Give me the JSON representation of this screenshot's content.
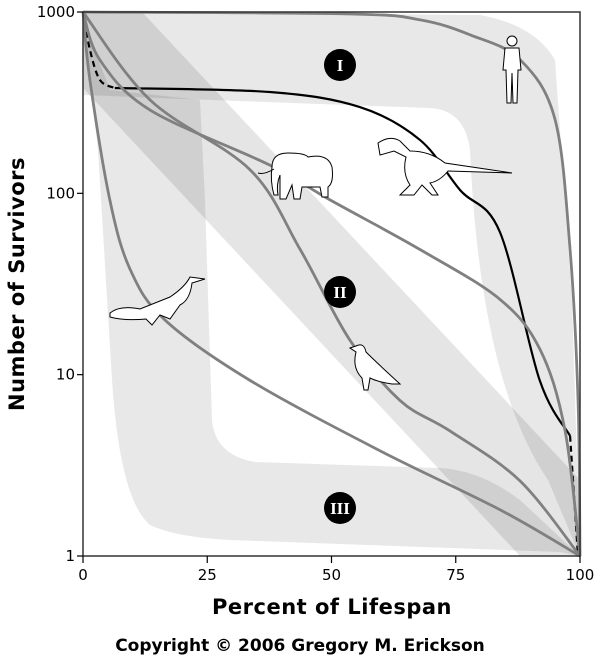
{
  "chart_data": {
    "type": "line",
    "xlabel": "Percent of Lifespan",
    "ylabel": "Number of Survivors",
    "xlim": [
      0,
      100
    ],
    "ylim": [
      1,
      1000
    ],
    "yscale": "log",
    "x_ticks": [
      "0",
      "25",
      "50",
      "75",
      "100"
    ],
    "y_ticks": [
      "1",
      "10",
      "100",
      "1000"
    ],
    "grid": false,
    "legend": "none",
    "region_labels": [
      "I",
      "II",
      "III"
    ],
    "series": [
      {
        "icon": "human-icon",
        "color": "#808080",
        "style": "solid",
        "points": [
          [
            0,
            1000
          ],
          [
            54,
            975
          ],
          [
            68,
            903
          ],
          [
            78,
            746
          ],
          [
            88,
            544
          ],
          [
            95,
            254
          ],
          [
            98,
            49
          ],
          [
            99.6,
            7.3
          ],
          [
            100,
            1
          ]
        ]
      },
      {
        "icon": "tyrannosaurus-icon",
        "color": "#000000",
        "style": "solid",
        "points": [
          [
            6.4,
            381
          ],
          [
            37.6,
            362
          ],
          [
            55.7,
            299
          ],
          [
            67.8,
            197
          ],
          [
            75.9,
            104
          ],
          [
            83.9,
            61
          ],
          [
            91.9,
            9.3
          ],
          [
            98,
            4.6
          ]
        ]
      },
      {
        "icon": "tyrannosaurus-icon",
        "color": "#000000",
        "style": "dashed",
        "points": [
          [
            0,
            1000
          ],
          [
            1.4,
            618
          ],
          [
            3.4,
            422
          ],
          [
            6.4,
            381
          ]
        ]
      },
      {
        "icon": "tyrannosaurus-icon",
        "color": "#000000",
        "style": "dashed",
        "points": [
          [
            98,
            4.6
          ],
          [
            99.6,
            1
          ]
        ]
      },
      {
        "icon": "elephant-icon",
        "color": "#808080",
        "style": "solid",
        "points": [
          [
            0,
            1000
          ],
          [
            3.4,
            544
          ],
          [
            13.5,
            288
          ],
          [
            37.6,
            143
          ],
          [
            49.7,
            92
          ],
          [
            67.8,
            49
          ],
          [
            83.9,
            26
          ],
          [
            92,
            13.7
          ],
          [
            97,
            4.9
          ],
          [
            100,
            1
          ]
        ]
      },
      {
        "icon": "bird-icon",
        "color": "#808080",
        "style": "solid",
        "points": [
          [
            0,
            1000
          ],
          [
            13.5,
            327
          ],
          [
            33.6,
            135
          ],
          [
            43.7,
            49
          ],
          [
            53.7,
            15.5
          ],
          [
            63.8,
            7.2
          ],
          [
            73.8,
            4.9
          ],
          [
            87.9,
            2.6
          ],
          [
            100,
            1
          ]
        ]
      },
      {
        "icon": "alligator-icon",
        "color": "#808080",
        "style": "solid",
        "points": [
          [
            0,
            1000
          ],
          [
            1.4,
            420
          ],
          [
            5.4,
            92
          ],
          [
            9.5,
            38
          ],
          [
            16.5,
            20
          ],
          [
            33.6,
            9.3
          ],
          [
            59.8,
            3.8
          ],
          [
            83.9,
            1.8
          ],
          [
            100,
            1
          ]
        ]
      }
    ]
  },
  "copyright": "Copyright © 2006 Gregory M. Erickson"
}
